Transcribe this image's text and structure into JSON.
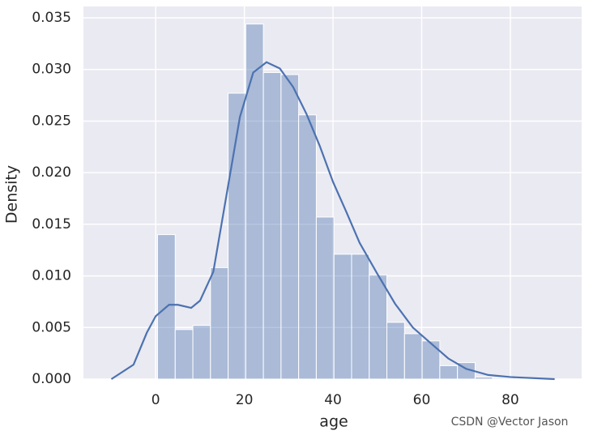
{
  "chart_data": {
    "type": "histogram",
    "xlabel": "age",
    "ylabel": "Density",
    "watermark": "CSDN @Vector Jason",
    "bins": [
      0.42,
      4.4,
      8.38,
      12.36,
      16.34,
      20.32,
      24.29,
      28.27,
      32.25,
      36.23,
      40.21,
      44.19,
      48.17,
      52.15,
      56.13,
      60.11,
      64.09,
      68.07,
      72.05,
      76.02,
      80.0
    ],
    "values": [
      0.014,
      0.0048,
      0.0052,
      0.0108,
      0.0277,
      0.0344,
      0.0297,
      0.0295,
      0.0256,
      0.0157,
      0.0121,
      0.0121,
      0.0101,
      0.0055,
      0.0044,
      0.0037,
      0.0013,
      0.0016,
      0.0002,
      0.0001
    ],
    "color": "#4c72b0",
    "kde": {
      "x": [
        -10,
        -5,
        -2,
        0,
        3,
        5,
        8,
        10,
        13,
        16,
        19,
        22,
        25,
        28,
        31,
        34,
        37,
        40,
        43,
        46,
        50,
        54,
        58,
        62,
        66,
        70,
        75,
        80,
        90
      ],
      "y": [
        0.0,
        0.0014,
        0.0045,
        0.0061,
        0.0072,
        0.0072,
        0.0069,
        0.0076,
        0.0104,
        0.0179,
        0.0254,
        0.0297,
        0.0307,
        0.0301,
        0.0283,
        0.0257,
        0.0226,
        0.0191,
        0.0162,
        0.0132,
        0.0102,
        0.0073,
        0.005,
        0.0035,
        0.002,
        0.001,
        0.0004,
        0.0002,
        0.0
      ]
    },
    "xlim": [
      -16.3,
      96.1
    ],
    "ylim": [
      0,
      0.0361
    ],
    "xticks": [
      0,
      20,
      40,
      60,
      80
    ],
    "yticks": [
      {
        "value": 0,
        "label": "0.000"
      },
      {
        "value": 0.005,
        "label": "0.005"
      },
      {
        "value": 0.01,
        "label": "0.010"
      },
      {
        "value": 0.015,
        "label": "0.015"
      },
      {
        "value": 0.02,
        "label": "0.020"
      },
      {
        "value": 0.025,
        "label": "0.025"
      },
      {
        "value": 0.03,
        "label": "0.030"
      },
      {
        "value": 0.035,
        "label": "0.035"
      }
    ],
    "grid": true
  }
}
